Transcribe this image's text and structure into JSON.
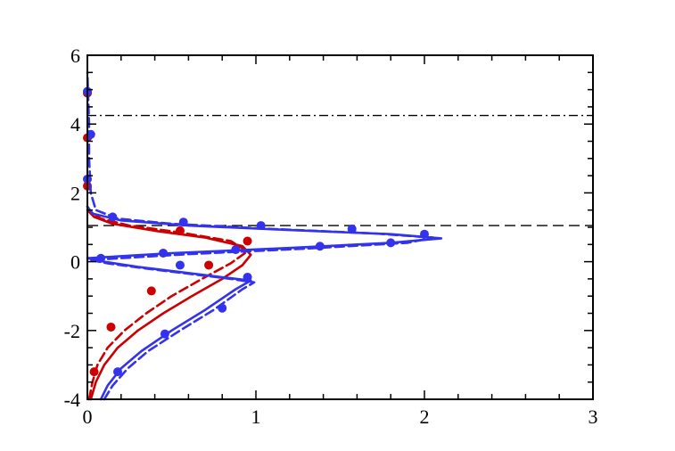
{
  "chart_data": {
    "type": "line",
    "title": "",
    "xlabel": "",
    "ylabel": "",
    "xlim": [
      0,
      3
    ],
    "ylim": [
      -4,
      6
    ],
    "x_ticks": [
      "0",
      "1",
      "2",
      "3"
    ],
    "y_ticks": [
      "-4",
      "-2",
      "0",
      "2",
      "4",
      "6"
    ],
    "grid": false,
    "legend": "none",
    "reference_lines": [
      {
        "y": 4.25,
        "style": "dash-dot",
        "color": "#000000"
      },
      {
        "y": 1.05,
        "style": "dashed",
        "color": "#000000"
      }
    ],
    "series": [
      {
        "color": "#cc0000",
        "style": "solid",
        "points": [
          [
            0.02,
            -4.0
          ],
          [
            0.05,
            -3.5
          ],
          [
            0.1,
            -3.0
          ],
          [
            0.18,
            -2.5
          ],
          [
            0.3,
            -2.0
          ],
          [
            0.45,
            -1.5
          ],
          [
            0.62,
            -1.0
          ],
          [
            0.8,
            -0.5
          ],
          [
            0.92,
            -0.1
          ],
          [
            0.97,
            0.2
          ],
          [
            0.92,
            0.45
          ],
          [
            0.7,
            0.7
          ],
          [
            0.4,
            0.9
          ],
          [
            0.15,
            1.1
          ],
          [
            0.04,
            1.3
          ],
          [
            0.0,
            1.5
          ]
        ]
      },
      {
        "color": "#cc0000",
        "style": "dashed",
        "points": [
          [
            0.01,
            -4.0
          ],
          [
            0.03,
            -3.5
          ],
          [
            0.06,
            -3.0
          ],
          [
            0.12,
            -2.5
          ],
          [
            0.22,
            -2.0
          ],
          [
            0.35,
            -1.5
          ],
          [
            0.5,
            -1.0
          ],
          [
            0.68,
            -0.5
          ],
          [
            0.85,
            -0.05
          ],
          [
            0.95,
            0.3
          ],
          [
            0.85,
            0.6
          ],
          [
            0.55,
            0.85
          ],
          [
            0.25,
            1.05
          ],
          [
            0.08,
            1.25
          ],
          [
            0.02,
            1.45
          ],
          [
            0.0,
            1.6
          ]
        ]
      },
      {
        "color": "#cc0000",
        "style": "markers",
        "points": [
          [
            0.04,
            -3.2
          ],
          [
            0.14,
            -1.9
          ],
          [
            0.38,
            -0.85
          ],
          [
            0.72,
            -0.1
          ],
          [
            0.95,
            0.6
          ],
          [
            0.55,
            0.9
          ],
          [
            0.0,
            2.2
          ],
          [
            0.0,
            3.6
          ],
          [
            0.0,
            4.9
          ]
        ]
      },
      {
        "color": "#3333ee",
        "style": "solid",
        "points": [
          [
            0.08,
            -4.0
          ],
          [
            0.12,
            -3.6
          ],
          [
            0.2,
            -3.1
          ],
          [
            0.32,
            -2.6
          ],
          [
            0.5,
            -2.0
          ],
          [
            0.7,
            -1.4
          ],
          [
            0.88,
            -0.8
          ],
          [
            0.97,
            -0.55
          ],
          [
            0.8,
            -0.45
          ],
          [
            0.55,
            -0.3
          ],
          [
            0.3,
            -0.15
          ],
          [
            0.1,
            0.0
          ],
          [
            0.0,
            0.1
          ],
          [
            0.5,
            0.25
          ],
          [
            1.2,
            0.4
          ],
          [
            1.8,
            0.55
          ],
          [
            2.1,
            0.68
          ],
          [
            1.8,
            0.8
          ],
          [
            1.2,
            0.92
          ],
          [
            0.6,
            1.05
          ],
          [
            0.2,
            1.2
          ],
          [
            0.03,
            1.4
          ],
          [
            0.0,
            1.6
          ]
        ]
      },
      {
        "color": "#3333ee",
        "style": "dashed",
        "points": [
          [
            0.1,
            -4.0
          ],
          [
            0.15,
            -3.6
          ],
          [
            0.24,
            -3.1
          ],
          [
            0.36,
            -2.6
          ],
          [
            0.55,
            -2.0
          ],
          [
            0.75,
            -1.4
          ],
          [
            0.92,
            -0.8
          ],
          [
            0.99,
            -0.6
          ],
          [
            0.85,
            -0.5
          ],
          [
            0.6,
            -0.35
          ],
          [
            0.35,
            -0.2
          ],
          [
            0.12,
            -0.05
          ],
          [
            0.02,
            0.05
          ],
          [
            0.6,
            0.22
          ],
          [
            1.3,
            0.38
          ],
          [
            1.9,
            0.55
          ],
          [
            2.05,
            0.7
          ],
          [
            1.7,
            0.82
          ],
          [
            1.1,
            0.95
          ],
          [
            0.5,
            1.1
          ],
          [
            0.18,
            1.25
          ],
          [
            0.05,
            1.5
          ],
          [
            0.02,
            2.0
          ],
          [
            0.01,
            3.0
          ],
          [
            0.01,
            4.0
          ],
          [
            0.0,
            5.5
          ]
        ]
      },
      {
        "color": "#3333ee",
        "style": "markers",
        "points": [
          [
            0.18,
            -3.2
          ],
          [
            0.46,
            -2.1
          ],
          [
            0.8,
            -1.35
          ],
          [
            0.95,
            -0.45
          ],
          [
            0.55,
            -0.1
          ],
          [
            0.08,
            0.1
          ],
          [
            0.45,
            0.25
          ],
          [
            0.88,
            0.35
          ],
          [
            1.38,
            0.45
          ],
          [
            1.8,
            0.55
          ],
          [
            2.0,
            0.8
          ],
          [
            1.57,
            0.95
          ],
          [
            1.03,
            1.05
          ],
          [
            0.57,
            1.15
          ],
          [
            0.15,
            1.3
          ],
          [
            0.0,
            2.4
          ],
          [
            0.02,
            3.7
          ],
          [
            0.0,
            4.95
          ]
        ]
      }
    ]
  }
}
